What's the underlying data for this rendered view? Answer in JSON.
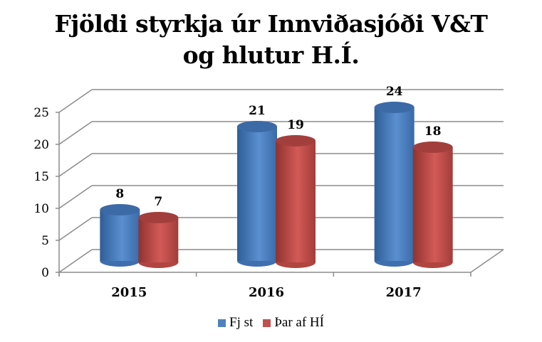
{
  "chart_data": {
    "type": "bar",
    "style": "3d-cylinder",
    "title": "Fjöldi styrkja úr Innviðasjóði V&T og hlutur H.Í.",
    "title_lines": [
      "Fjöldi styrkja úr Innviðasjóði V&T",
      "og hlutur H.Í."
    ],
    "categories": [
      "2015",
      "2016",
      "2017"
    ],
    "series": [
      {
        "name": "Fj st",
        "values": [
          8,
          21,
          24
        ],
        "color": "#4F81BD"
      },
      {
        "name": "Þar af HÍ",
        "values": [
          7,
          19,
          18
        ],
        "color": "#C0504D"
      }
    ],
    "xlabel": "",
    "ylabel": "",
    "ylim": [
      0,
      25
    ],
    "yticks": [
      "0",
      "5",
      "10",
      "15",
      "20",
      "25"
    ],
    "grid": true,
    "data_labels": true,
    "legend_position": "bottom"
  }
}
